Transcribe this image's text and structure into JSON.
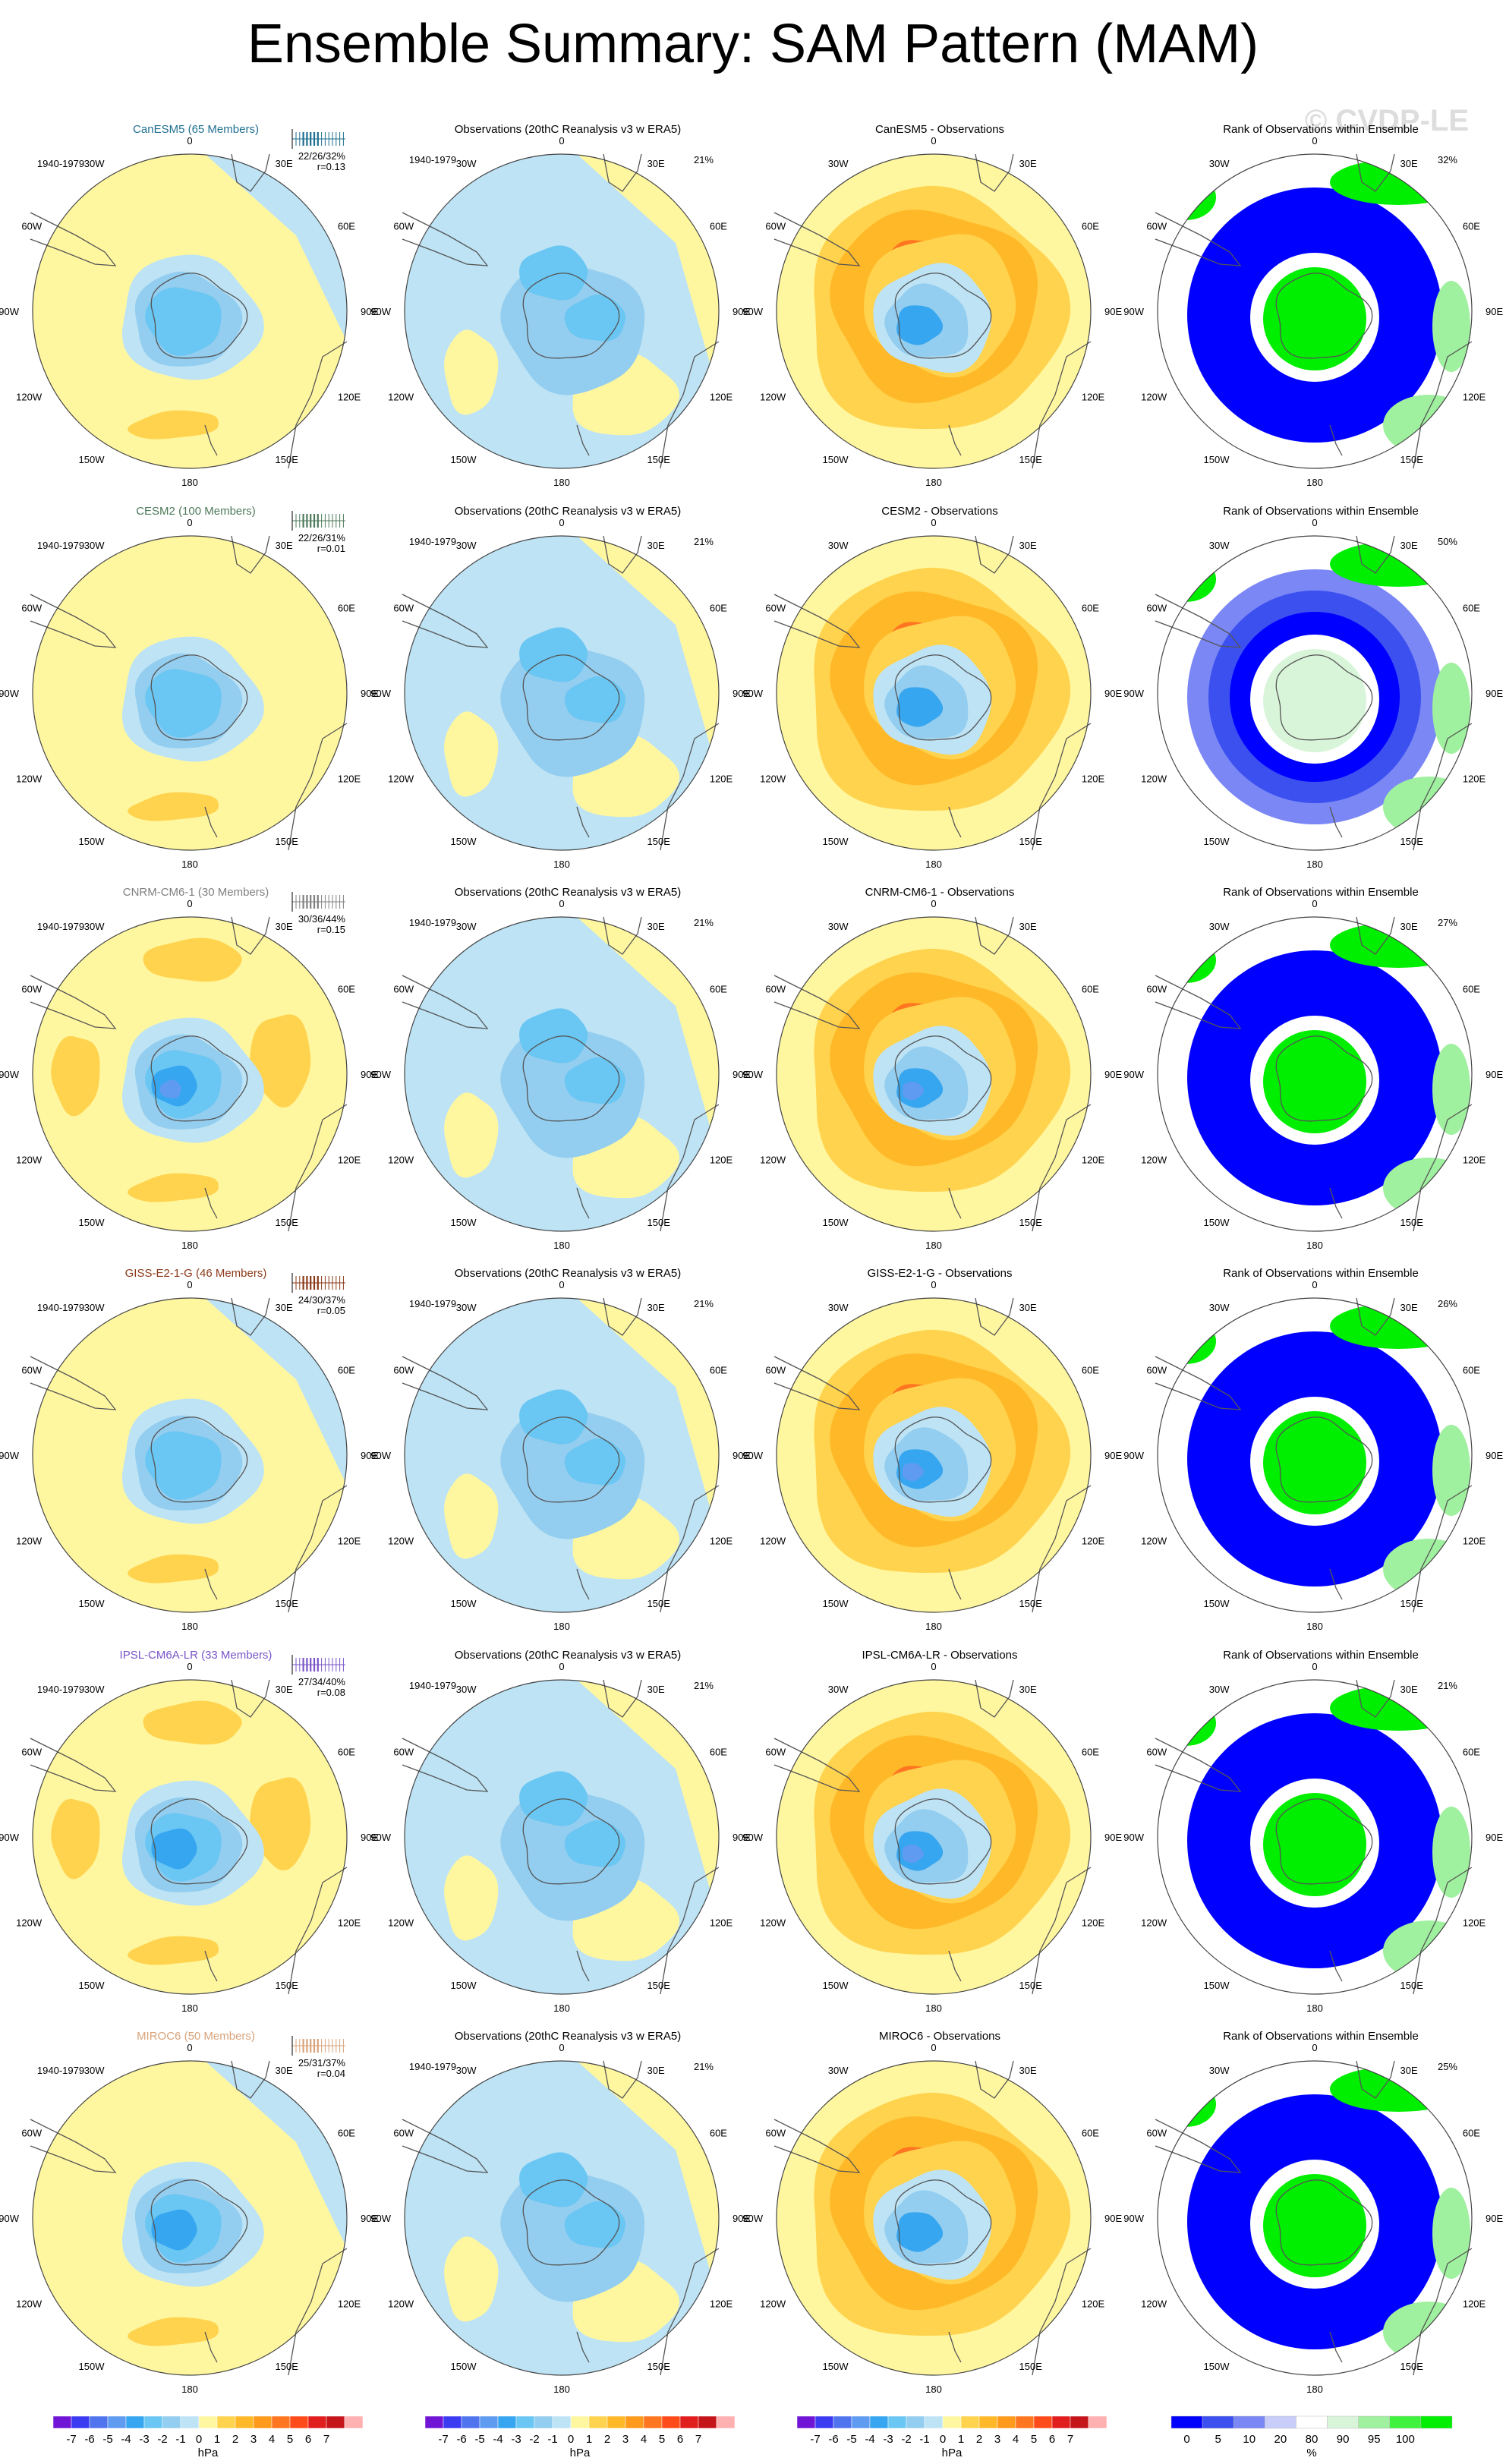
{
  "title": "Ensemble Summary: SAM Pattern (MAM)",
  "watermark": "© CVDP-LE",
  "period": "1940-1979",
  "lon_labels": [
    "0",
    "30E",
    "60E",
    "90E",
    "120E",
    "150E",
    "180",
    "150W",
    "120W",
    "90W",
    "60W",
    "30W"
  ],
  "colorbars": {
    "pattern": {
      "labels": [
        "-7",
        "-6",
        "-5",
        "-4",
        "-3",
        "-2",
        "-1",
        "0",
        "1",
        "2",
        "3",
        "4",
        "5",
        "6",
        "7"
      ],
      "units": "hPa"
    },
    "rank": {
      "labels": [
        "0",
        "5",
        "10",
        "20",
        "80",
        "90",
        "95",
        "100"
      ],
      "units": "%"
    }
  },
  "colors": {
    "levels": [
      "#7015d6",
      "#3b3bf2",
      "#4f74ee",
      "#5f9bf0",
      "#35a6ef",
      "#6ac6f2",
      "#93cdef",
      "#bde3f5",
      "#fff7a0",
      "#ffd34e",
      "#ffb928",
      "#ff9a1c",
      "#ff7520",
      "#ff4a1a",
      "#e01e1e",
      "#c4151b",
      "#ffb0b0"
    ],
    "rank": [
      "#0000ff",
      "#3c50f0",
      "#7a87f5",
      "#c8cdfa",
      "#ffffff",
      "#d9f5d9",
      "#9ff09f",
      "#3ef23e",
      "#00ee00"
    ],
    "ocean": "#bde3f5",
    "land_line": "#555555"
  },
  "column_titles": {
    "obs": "Observations (20thC Reanalysis v3 w ERA5)",
    "rank": "Rank of Observations within Ensemble",
    "diff_suffix": " - Observations"
  },
  "chart_data": [
    {
      "type": "heatmap",
      "model": "CanESM5",
      "members": 65,
      "label": "CanESM5 (65 Members)",
      "label_color": "#1e6f8f",
      "stats": "22/26/32%",
      "r": "r=0.13",
      "obs_pct": "21%",
      "rank_pct": "32%",
      "units": "hPa",
      "range": [
        -7,
        7
      ]
    },
    {
      "type": "heatmap",
      "model": "CESM2",
      "members": 100,
      "label": "CESM2 (100 Members)",
      "label_color": "#4d7a5a",
      "stats": "22/26/31%",
      "r": "r=0.01",
      "obs_pct": "21%",
      "rank_pct": "50%",
      "units": "hPa",
      "range": [
        -7,
        7
      ]
    },
    {
      "type": "heatmap",
      "model": "CNRM-CM6-1",
      "members": 30,
      "label": "CNRM-CM6-1 (30 Members)",
      "label_color": "#808080",
      "stats": "30/36/44%",
      "r": "r=0.15",
      "obs_pct": "21%",
      "rank_pct": "27%",
      "units": "hPa",
      "range": [
        -7,
        7
      ]
    },
    {
      "type": "heatmap",
      "model": "GISS-E2-1-G",
      "members": 46,
      "label": "GISS-E2-1-G (46 Members)",
      "label_color": "#8b3a1a",
      "stats": "24/30/37%",
      "r": "r=0.05",
      "obs_pct": "21%",
      "rank_pct": "26%",
      "units": "hPa",
      "range": [
        -7,
        7
      ]
    },
    {
      "type": "heatmap",
      "model": "IPSL-CM6A-LR",
      "members": 33,
      "label": "IPSL-CM6A-LR (33 Members)",
      "label_color": "#7a55c8",
      "stats": "27/34/40%",
      "r": "r=0.08",
      "obs_pct": "21%",
      "rank_pct": "21%",
      "units": "hPa",
      "range": [
        -7,
        7
      ]
    },
    {
      "type": "heatmap",
      "model": "MIROC6",
      "members": 50,
      "label": "MIROC6 (50 Members)",
      "label_color": "#d9a37a",
      "stats": "25/31/37%",
      "r": "r=0.04",
      "obs_pct": "21%",
      "rank_pct": "25%",
      "units": "hPa",
      "range": [
        -7,
        7
      ]
    }
  ]
}
